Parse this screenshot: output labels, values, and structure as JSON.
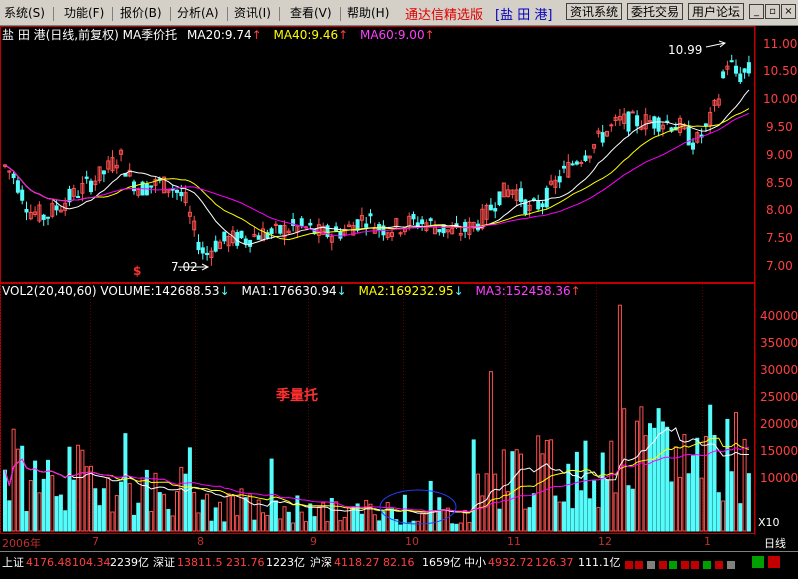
{
  "menu": [
    {
      "label": "系统(S)"
    },
    {
      "label": "功能(F)"
    },
    {
      "label": "报价(B)"
    },
    {
      "label": "分析(A)"
    },
    {
      "label": "资讯(I)"
    },
    {
      "label": "查看(V)"
    },
    {
      "label": "帮助(H)"
    }
  ],
  "app_title": "通达信精选版",
  "stock_name": "[盐 田 港]",
  "toolbar": {
    "news": "资讯系统",
    "trade": "委托交易",
    "forum": "用户论坛"
  },
  "window_buttons": {
    "minimize": "_",
    "restore": "▫",
    "close": "×"
  },
  "price_panel": {
    "title": "盐 田 港(日线,前复权) MA季价托",
    "ma20": "MA20:9.74",
    "ma40": "MA40:9.46",
    "ma60": "MA60:9.00",
    "high_label": "10.99",
    "low_label": "7.02",
    "axis_ticks": [
      "11.00",
      "10.50",
      "10.00",
      "9.50",
      "9.00",
      "8.50",
      "8.00",
      "7.50",
      "7.00"
    ],
    "marker": "$",
    "colors": {
      "up": "#ff5050",
      "down": "#54fcfc",
      "ma20": "#ffffff",
      "ma40": "#ffff00",
      "ma60": "#ff00ff"
    }
  },
  "volume_panel": {
    "title": "VOL2(20,40,60) VOLUME:142688.53",
    "ma1": "MA1:176630.94",
    "ma2": "MA2:169232.95",
    "ma3": "MA3:152458.36",
    "annotation": "季量托",
    "axis_ticks": [
      "40000",
      "35000",
      "30000",
      "25000",
      "20000",
      "15000",
      "10000"
    ],
    "unit": "X10"
  },
  "x_axis": {
    "labels": [
      "2006年",
      "7",
      "8",
      "9",
      "10",
      "11",
      "12",
      "1"
    ],
    "period": "日线"
  },
  "status": {
    "sh_name": "上证",
    "sh_val": "4176.48",
    "sh_chg": "104.34",
    "sh_amt": "2239亿",
    "sz_name": "深证",
    "sz_val": "13811.5",
    "sz_chg": "231.76",
    "sz_amt": "1223亿",
    "hs_name": "沪深",
    "hs_val": "4118.27",
    "hs_chg": "82.16",
    "hs_amt": "1659亿",
    "zx_name": "中小",
    "zx_val": "4932.72",
    "zx_chg": "126.37",
    "zx_amt": "111.1亿"
  }
}
